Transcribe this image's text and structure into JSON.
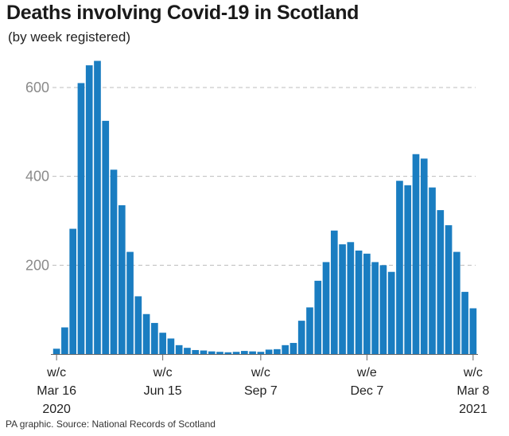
{
  "header": {
    "title": "Deaths involving Covid-19 in Scotland",
    "subtitle": "(by week registered)"
  },
  "footer": {
    "source": "PA graphic. Source: National Records of Scotland"
  },
  "colors": {
    "bar": "#1a7dc1",
    "grid": "#bdbdbd",
    "axis": "#666666"
  },
  "chart_data": {
    "type": "bar",
    "title": "Deaths involving Covid-19 in Scotland",
    "subtitle": "(by week registered)",
    "xlabel": "",
    "ylabel": "",
    "ylim": [
      0,
      660
    ],
    "yticks": [
      200,
      400,
      600
    ],
    "grid": true,
    "x_tick_labels": [
      {
        "index": 0,
        "lines": [
          "w/c",
          "Mar 16",
          "2020"
        ]
      },
      {
        "index": 13,
        "lines": [
          "w/c",
          "Jun 15"
        ]
      },
      {
        "index": 25,
        "lines": [
          "w/c",
          "Sep 7"
        ]
      },
      {
        "index": 38,
        "lines": [
          "w/e",
          "Dec 7"
        ]
      },
      {
        "index": 51,
        "lines": [
          "w/c",
          "Mar 8",
          "2021"
        ]
      }
    ],
    "values": [
      12,
      60,
      282,
      610,
      650,
      660,
      525,
      415,
      335,
      230,
      130,
      90,
      70,
      48,
      35,
      20,
      14,
      9,
      8,
      6,
      5,
      4,
      5,
      7,
      6,
      5,
      10,
      11,
      20,
      25,
      75,
      105,
      165,
      207,
      278,
      247,
      252,
      233,
      226,
      207,
      200,
      185,
      390,
      380,
      450,
      440,
      375,
      324,
      290,
      230,
      140,
      103
    ]
  }
}
